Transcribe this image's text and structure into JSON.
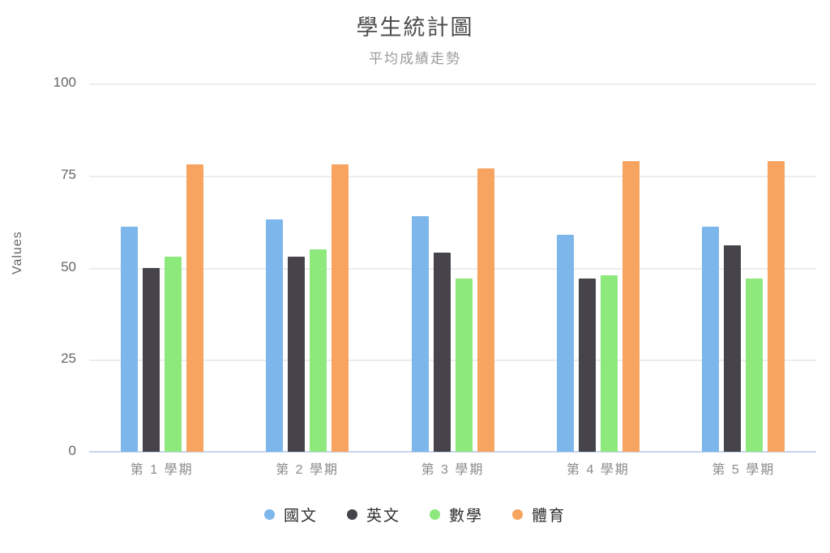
{
  "chart_data": {
    "type": "bar",
    "title": "學生統計圖",
    "subtitle": "平均成績走勢",
    "xlabel": "",
    "ylabel": "Values",
    "ylim": [
      0,
      100
    ],
    "yticks": [
      0,
      25,
      50,
      75,
      100
    ],
    "grid": true,
    "legend_position": "bottom",
    "axis_line_color": "#c6d3ea",
    "gridline_color": "#ededed",
    "categories": [
      "第 1 學期",
      "第 2 學期",
      "第 3 學期",
      "第 4 學期",
      "第 5 學期"
    ],
    "series": [
      {
        "name": "國文",
        "color": "#7DB6EB",
        "values": [
          61,
          63,
          64,
          59,
          61
        ]
      },
      {
        "name": "英文",
        "color": "#46444A",
        "values": [
          50,
          53,
          54,
          47,
          56
        ]
      },
      {
        "name": "數學",
        "color": "#8EE97D",
        "values": [
          53,
          55,
          47,
          48,
          47
        ]
      },
      {
        "name": "體育",
        "color": "#F6A45F",
        "values": [
          78,
          78,
          77,
          79,
          79
        ]
      }
    ]
  }
}
